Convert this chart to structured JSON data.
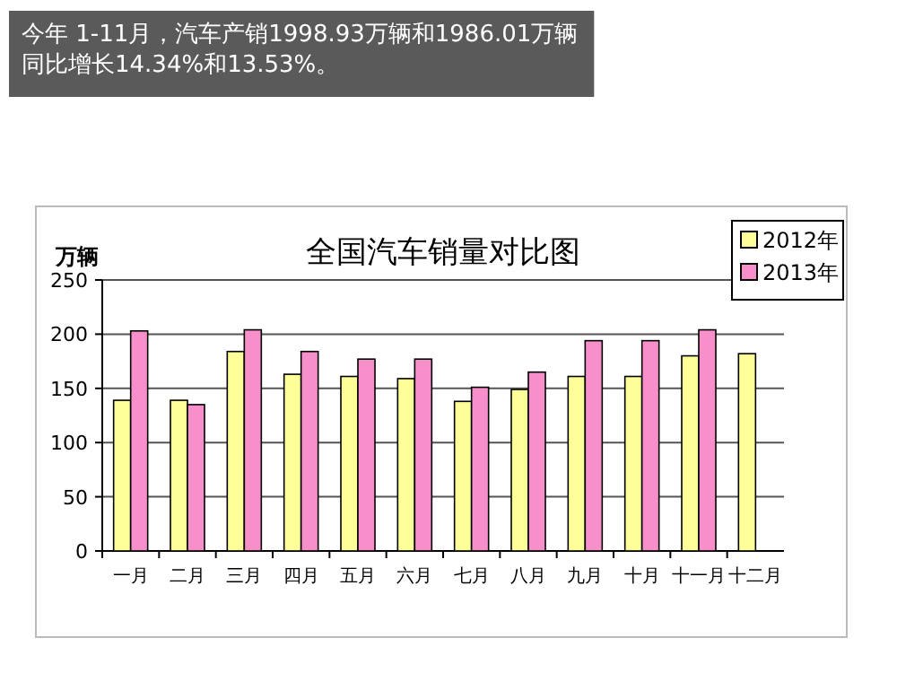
{
  "chart_data": {
    "type": "bar",
    "title": "全国汽车销量对比图",
    "ylabel": "万辆",
    "annotations": [
      "今年 1-11月，汽车产销1998.93万辆和1986.01万辆",
      "同比增长14.34%和13.53%。"
    ],
    "categories": [
      "一月",
      "二月",
      "三月",
      "四月",
      "五月",
      "六月",
      "七月",
      "八月",
      "九月",
      "十月",
      "十一月",
      "十二月"
    ],
    "series": [
      {
        "name": "2012年",
        "color": "#ffff99",
        "values": [
          139,
          139,
          184,
          163,
          161,
          159,
          138,
          149,
          161,
          161,
          180,
          182
        ]
      },
      {
        "name": "2013年",
        "color": "#f78fcb",
        "values": [
          203,
          135,
          204,
          184,
          177,
          177,
          151,
          165,
          194,
          194,
          204,
          null
        ]
      }
    ],
    "ylim": [
      0,
      250
    ],
    "yticks": [
      0,
      50,
      100,
      150,
      200,
      250
    ],
    "grid": "y",
    "legend": "top right"
  }
}
